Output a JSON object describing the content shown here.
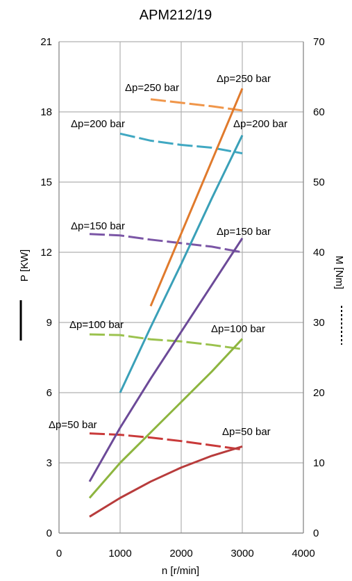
{
  "chart_data": {
    "type": "line",
    "title": "APM212/19",
    "xlabel": "n [r/min]",
    "ylabel_left": "P [KW]",
    "ylabel_right": "M [Nm]",
    "xlim": [
      0,
      4000
    ],
    "ylim_left": [
      0,
      21
    ],
    "ylim_right": [
      0,
      70
    ],
    "x_ticks": [
      0,
      1000,
      2000,
      3000,
      4000
    ],
    "y_left_ticks": [
      0,
      3,
      6,
      9,
      12,
      15,
      18,
      21
    ],
    "y_right_ticks": [
      0,
      10,
      20,
      30,
      40,
      50,
      60,
      70
    ],
    "grid": true,
    "power_series": [
      {
        "name": "Δp=50 bar",
        "color": "#b83c3c",
        "x": [
          500,
          1000,
          1500,
          2000,
          2500,
          3000
        ],
        "y": [
          0.7,
          1.5,
          2.2,
          2.8,
          3.3,
          3.7
        ]
      },
      {
        "name": "Δp=100 bar",
        "color": "#8db53f",
        "x": [
          500,
          1000,
          1500,
          2000,
          2500,
          3000
        ],
        "y": [
          1.5,
          3.0,
          4.3,
          5.6,
          6.9,
          8.3
        ]
      },
      {
        "name": "Δp=150 bar",
        "color": "#6c4a98",
        "x": [
          500,
          1000,
          1500,
          2000,
          2500,
          3000
        ],
        "y": [
          2.2,
          4.5,
          6.6,
          8.6,
          10.6,
          12.6
        ]
      },
      {
        "name": "Δp=200 bar",
        "color": "#3aa0b8",
        "x": [
          1000,
          1500,
          2000,
          2500,
          3000
        ],
        "y": [
          6.0,
          8.8,
          11.5,
          14.3,
          17.0
        ]
      },
      {
        "name": "Δp=250 bar",
        "color": "#e07a2c",
        "x": [
          1500,
          2000,
          2500,
          3000
        ],
        "y": [
          9.7,
          12.8,
          15.9,
          19.0
        ]
      }
    ],
    "torque_series": [
      {
        "name": "Δp=50 bar",
        "color": "#c93a3a",
        "x": [
          500,
          1000,
          1500,
          2000,
          2500,
          3000
        ],
        "y": [
          14.2,
          14.0,
          13.6,
          13.1,
          12.5,
          11.9
        ]
      },
      {
        "name": "Δp=100 bar",
        "color": "#9bc24e",
        "x": [
          500,
          1000,
          1500,
          2000,
          2500,
          3000
        ],
        "y": [
          28.3,
          28.2,
          27.6,
          27.3,
          26.8,
          26.2
        ]
      },
      {
        "name": "Δp=150 bar",
        "color": "#7b56a6",
        "x": [
          500,
          1000,
          1500,
          2000,
          2500,
          3000
        ],
        "y": [
          42.6,
          42.4,
          41.8,
          41.3,
          40.8,
          40.0
        ]
      },
      {
        "name": "Δp=200 bar",
        "color": "#40a8c2",
        "x": [
          1000,
          1500,
          2000,
          2500,
          3000
        ],
        "y": [
          56.9,
          55.9,
          55.3,
          54.9,
          54.1
        ]
      },
      {
        "name": "Δp=250 bar",
        "color": "#f0964a",
        "x": [
          1500,
          2000,
          2500,
          3000
        ],
        "y": [
          61.8,
          61.3,
          60.8,
          60.2
        ]
      }
    ]
  }
}
